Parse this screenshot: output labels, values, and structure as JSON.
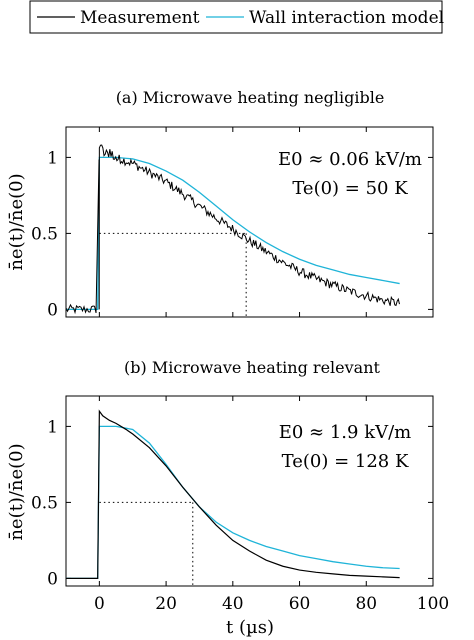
{
  "legend": {
    "entries": [
      {
        "name": "Measurement",
        "color": "#000000"
      },
      {
        "name": "Wall interaction model",
        "color": "#1fb4d8"
      }
    ]
  },
  "axes": {
    "ylabel": "n̄e(t)/n̄e(0)",
    "xlabel": "t (µs)"
  },
  "chart_data": [
    {
      "type": "line",
      "title": "(a) Microwave heating negligible",
      "annotations": [
        "E0 ≈ 0.06 kV/m",
        "Te(0) = 50 K"
      ],
      "xlim": [
        -10,
        100
      ],
      "ylim": [
        -0.05,
        1.2
      ],
      "yticks": [
        0,
        0.5,
        1
      ],
      "xticks": [],
      "reference_point": {
        "x": 44,
        "y": 0.5
      },
      "series": [
        {
          "name": "Measurement",
          "color": "#000000",
          "noisy": true,
          "x": [
            -10,
            -1,
            0,
            2,
            5,
            10,
            15,
            20,
            25,
            30,
            35,
            40,
            45,
            50,
            55,
            60,
            65,
            70,
            75,
            80,
            85,
            90
          ],
          "y": [
            0.0,
            0.0,
            1.08,
            1.03,
            1.0,
            0.96,
            0.9,
            0.84,
            0.76,
            0.68,
            0.6,
            0.53,
            0.45,
            0.38,
            0.31,
            0.25,
            0.2,
            0.16,
            0.12,
            0.09,
            0.06,
            0.04
          ]
        },
        {
          "name": "Wall interaction model",
          "color": "#1fb4d8",
          "noisy": false,
          "x": [
            -10,
            -0.5,
            0,
            5,
            10,
            15,
            20,
            25,
            30,
            35,
            40,
            45,
            50,
            55,
            60,
            65,
            70,
            75,
            80,
            85,
            90
          ],
          "y": [
            0.0,
            0.0,
            1.0,
            1.0,
            0.99,
            0.96,
            0.91,
            0.85,
            0.77,
            0.68,
            0.59,
            0.51,
            0.44,
            0.38,
            0.33,
            0.29,
            0.26,
            0.23,
            0.21,
            0.19,
            0.17
          ]
        }
      ]
    },
    {
      "type": "line",
      "title": "(b) Microwave heating relevant",
      "annotations": [
        "E0 ≈ 1.9 kV/m",
        "Te(0) = 128 K"
      ],
      "xlim": [
        -10,
        100
      ],
      "ylim": [
        -0.05,
        1.2
      ],
      "yticks": [
        0,
        0.5,
        1
      ],
      "xticks": [
        0,
        20,
        40,
        60,
        80,
        100
      ],
      "reference_point": {
        "x": 28,
        "y": 0.5
      },
      "series": [
        {
          "name": "Measurement",
          "color": "#000000",
          "noisy": false,
          "x": [
            -10,
            -0.5,
            0,
            1,
            3,
            5,
            8,
            10,
            15,
            20,
            25,
            30,
            35,
            40,
            45,
            50,
            55,
            60,
            65,
            70,
            75,
            80,
            85,
            90
          ],
          "y": [
            0.0,
            0.0,
            1.1,
            1.07,
            1.04,
            1.02,
            0.98,
            0.95,
            0.86,
            0.74,
            0.6,
            0.47,
            0.35,
            0.25,
            0.18,
            0.12,
            0.08,
            0.055,
            0.04,
            0.03,
            0.02,
            0.015,
            0.01,
            0.005
          ]
        },
        {
          "name": "Wall interaction model",
          "color": "#1fb4d8",
          "noisy": false,
          "x": [
            -10,
            -0.5,
            0,
            5,
            10,
            15,
            20,
            25,
            30,
            35,
            40,
            45,
            50,
            55,
            60,
            65,
            70,
            75,
            80,
            85,
            90
          ],
          "y": [
            0.0,
            0.0,
            1.0,
            1.0,
            0.98,
            0.89,
            0.75,
            0.6,
            0.47,
            0.37,
            0.3,
            0.25,
            0.21,
            0.18,
            0.15,
            0.13,
            0.11,
            0.095,
            0.08,
            0.07,
            0.065
          ]
        }
      ]
    }
  ]
}
